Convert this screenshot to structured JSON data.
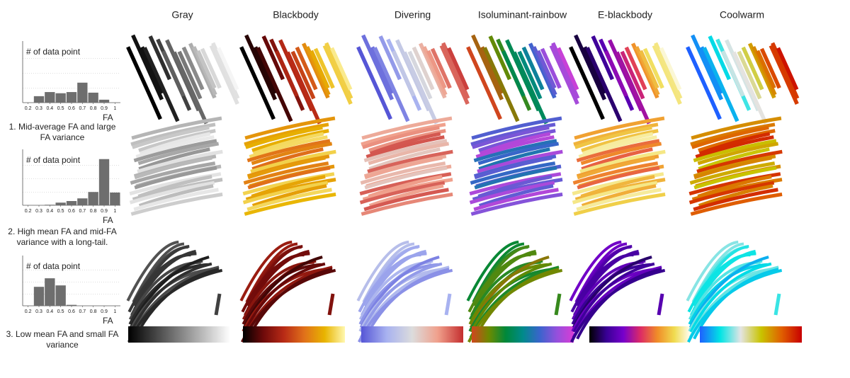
{
  "columns": [
    "Gray",
    "Blackbody",
    "Divering",
    "Isoluminant-rainbow",
    "E-blackbody",
    "Coolwarm"
  ],
  "row_captions": [
    "1. Mid-average FA and large FA variance",
    "2. High mean FA and mid-FA variance with a long-tail.",
    "3. Low mean FA and small FA variance"
  ],
  "chart_data": [
    {
      "type": "histogram",
      "ylabel": "# of data point",
      "xlabel": "FA",
      "color": "#6e6e6e",
      "bins": [
        0.25,
        0.35,
        0.45,
        0.55,
        0.65,
        0.75,
        0.85,
        0.95
      ],
      "values": [
        11,
        18,
        16,
        18,
        34,
        17,
        5
      ],
      "xlim": [
        0.15,
        1.05
      ],
      "xticks": [
        0.2,
        0.3,
        0.4,
        0.5,
        0.6,
        0.7,
        0.8,
        0.9,
        1
      ],
      "ylim": [
        0,
        100
      ]
    },
    {
      "type": "histogram",
      "ylabel": "# of data point",
      "xlabel": "FA",
      "color": "#6e6e6e",
      "bins": [
        0.35,
        0.45,
        0.55,
        0.65,
        0.75,
        0.85,
        0.95,
        1.05
      ],
      "values": [
        1,
        5,
        8,
        13,
        25,
        87,
        24
      ],
      "xlim": [
        0.15,
        1.05
      ],
      "xticks": [
        0.2,
        0.3,
        0.4,
        0.5,
        0.6,
        0.7,
        0.8,
        0.9,
        1
      ],
      "ylim": [
        0,
        100
      ]
    },
    {
      "type": "histogram",
      "ylabel": "# of data point",
      "xlabel": "FA",
      "color": "#6e6e6e",
      "bins": [
        0.25,
        0.35,
        0.45,
        0.55,
        0.65
      ],
      "values": [
        40,
        58,
        43,
        2
      ],
      "xlim": [
        0.15,
        1.05
      ],
      "xticks": [
        0.2,
        0.3,
        0.4,
        0.5,
        0.6,
        0.7,
        0.8,
        0.9,
        1
      ],
      "ylim": [
        0,
        100
      ]
    }
  ]
}
